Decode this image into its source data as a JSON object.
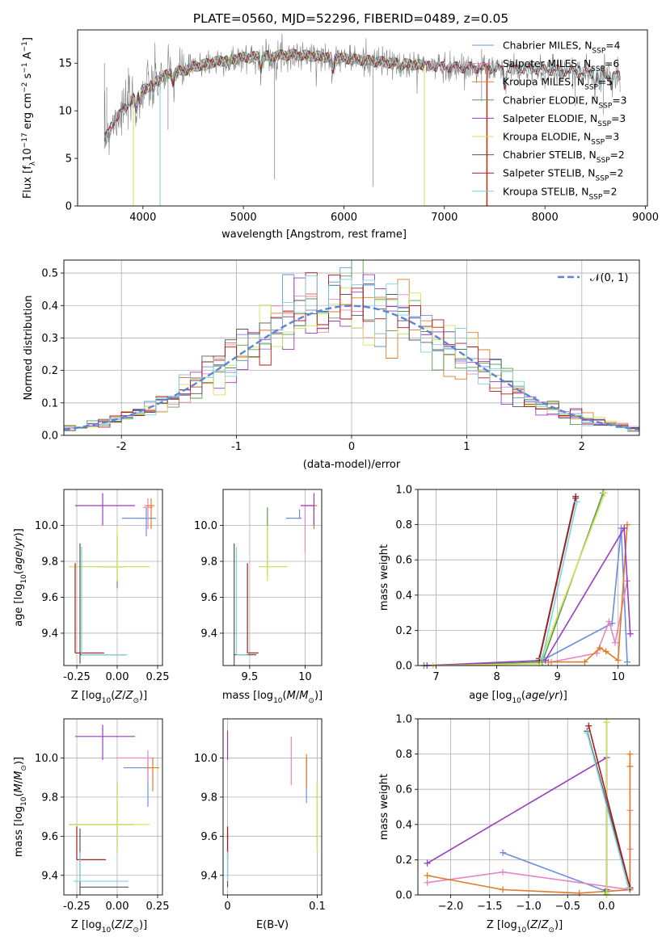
{
  "figure": {
    "title": "PLATE=0560, MJD=52296, FIBERID=0489, z=0.05"
  },
  "colors": {
    "Chabrier MILES": "#6a8fdc",
    "Salpeter MILES": "#e785c2",
    "Kroupa MILES": "#e07b28",
    "Chabrier ELODIE": "#5b9a4c",
    "Salpeter ELODIE": "#9a3cbf",
    "Kroupa ELODIE": "#cfe35a",
    "Chabrier STELIB": "#555555",
    "Salpeter STELIB": "#aa1b1b",
    "Kroupa STELIB": "#7fd2de",
    "data": "#7f7f7f",
    "normal": "#5b86d6"
  },
  "chart_data": [
    {
      "id": "spectrum",
      "type": "line",
      "xlabel": "wavelength [Angstrom, rest frame]",
      "ylabel": "Flux [f_λ10^-17 erg cm^-2 s^-1 A^-1]",
      "xlim": [
        3350,
        9020
      ],
      "ylim": [
        0,
        18.5
      ],
      "xticks": [
        4000,
        5000,
        6000,
        7000,
        8000,
        9000
      ],
      "yticks": [
        0,
        5,
        10,
        15
      ],
      "grid": false,
      "legend_position": "right",
      "legend": [
        "Chabrier MILES, N_SSP=4",
        "Salpeter MILES, N_SSP=6",
        "Kroupa MILES, N_SSP=5",
        "Chabrier ELODIE, N_SSP=3",
        "Salpeter ELODIE, N_SSP=3",
        "Kroupa ELODIE, N_SSP=3",
        "Chabrier STELIB, N_SSP=2",
        "Salpeter STELIB, N_SSP=2",
        "Kroupa STELIB, N_SSP=2"
      ],
      "continuum": {
        "x": [
          3620,
          3700,
          3800,
          3900,
          4000,
          4100,
          4200,
          4300,
          4400,
          4500,
          4700,
          5000,
          5500,
          6000,
          6500,
          7000,
          7400,
          7600,
          7800,
          8000,
          8200,
          8400,
          8600,
          8750
        ],
        "y": [
          7.0,
          8.8,
          10.0,
          11.3,
          12.2,
          12.8,
          13.6,
          14.0,
          14.2,
          14.6,
          15.1,
          15.6,
          15.9,
          15.5,
          15.0,
          14.6,
          14.5,
          14.4,
          14.4,
          14.3,
          14.2,
          14.0,
          13.9,
          13.7
        ]
      },
      "features": [
        {
          "x": 3933,
          "y": 10.0
        },
        {
          "x": 3968,
          "y": 10.6
        },
        {
          "x": 4102,
          "y": 12.0
        },
        {
          "x": 4300,
          "y": 12.9
        },
        {
          "x": 4861,
          "y": 14.6
        },
        {
          "x": 5175,
          "y": 14.3
        },
        {
          "x": 5270,
          "y": 15.1
        },
        {
          "x": 5890,
          "y": 14.1
        },
        {
          "x": 6563,
          "y": 14.0
        },
        {
          "x": 7600,
          "y": 12.3
        },
        {
          "x": 8498,
          "y": 12.6
        },
        {
          "x": 8542,
          "y": 12.2
        },
        {
          "x": 8662,
          "y": 12.4
        }
      ],
      "data_spikes": [
        {
          "x": 3617,
          "y1": 6.0,
          "y2": 15.0
        },
        {
          "x": 3640,
          "y1": 7.2,
          "y2": 12.5
        },
        {
          "x": 3905,
          "y1": 0,
          "y2": 8.5
        },
        {
          "x": 4170,
          "y1": 0,
          "y2": 10.8
        },
        {
          "x": 5310,
          "y1": 2.8,
          "y2": 15.5
        },
        {
          "x": 6290,
          "y1": 2.0,
          "y2": 15.8
        },
        {
          "x": 6800,
          "y1": 0,
          "y2": 15.3
        },
        {
          "x": 7420,
          "y1": 0,
          "y2": 15.0
        },
        {
          "x": 4250,
          "y1": 8.0,
          "y2": 13.6
        },
        {
          "x": 7370,
          "y1": 11.0,
          "y2": 16.5
        },
        {
          "x": 8300,
          "y1": 10.5,
          "y2": 14.6
        },
        {
          "x": 8580,
          "y1": 9.6,
          "y2": 14.5
        }
      ]
    },
    {
      "id": "residuals",
      "type": "histogram",
      "xlabel": "(data-model)/error",
      "ylabel": "Normed distribution",
      "xlim": [
        -2.5,
        2.5
      ],
      "ylim": [
        0,
        0.54
      ],
      "xticks": [
        -2,
        -1,
        0,
        1,
        2
      ],
      "yticks": [
        0.0,
        0.1,
        0.2,
        0.3,
        0.4,
        0.5
      ],
      "grid": true,
      "bin_edges_range": [
        -2.5,
        2.5
      ],
      "bin_count": 50,
      "normal_label": "𝒩(0, 1)",
      "normal_mean": 0,
      "normal_std": 1
    },
    {
      "id": "age_vs_Z",
      "type": "errorbar",
      "xlabel": "Z [log10(Z/Z⊙)]",
      "ylabel": "age [log10(age/yr)]",
      "xlim": [
        -0.33,
        0.28
      ],
      "ylim": [
        9.22,
        10.2
      ],
      "xticks": [
        -0.25,
        0.0,
        0.25
      ],
      "yticks": [
        9.4,
        9.6,
        9.8,
        10.0
      ],
      "grid": true,
      "points": [
        {
          "series": "Chabrier MILES",
          "x": 0.18,
          "y": 10.04,
          "xerr": [
            0.15,
            0.06
          ],
          "yerr": [
            0.1,
            0.06
          ]
        },
        {
          "series": "Salpeter MILES",
          "x": 0.19,
          "y": 10.1,
          "xerr": [
            0.03,
            0.03
          ],
          "yerr": [
            0.12,
            0.05
          ]
        },
        {
          "series": "Kroupa MILES",
          "x": 0.21,
          "y": 10.11,
          "xerr": [
            0.04,
            0.02
          ],
          "yerr": [
            0.13,
            0.04
          ]
        },
        {
          "series": "Chabrier ELODIE",
          "x": 0.0,
          "y": 9.77,
          "xerr": [
            0.12,
            0.05
          ],
          "yerr": [
            0.12,
            0.18
          ]
        },
        {
          "series": "Salpeter ELODIE",
          "x": -0.09,
          "y": 10.11,
          "xerr": [
            0.17,
            0.2
          ],
          "yerr": [
            0.11,
            0.07
          ]
        },
        {
          "series": "Kroupa ELODIE",
          "x": 0.0,
          "y": 9.77,
          "xerr": [
            0.3,
            0.2
          ],
          "yerr": [
            0.08,
            0.22
          ]
        },
        {
          "series": "Chabrier STELIB",
          "x": -0.23,
          "y": 9.28,
          "xerr": [
            0.0,
            0.28
          ],
          "yerr": [
            0.05,
            0.62
          ]
        },
        {
          "series": "Salpeter STELIB",
          "x": -0.26,
          "y": 9.29,
          "xerr": [
            0.0,
            0.18
          ],
          "yerr": [
            0.0,
            0.5
          ]
        },
        {
          "series": "Kroupa STELIB",
          "x": -0.22,
          "y": 9.28,
          "xerr": [
            0.0,
            0.28
          ],
          "yerr": [
            0.0,
            0.6
          ]
        }
      ]
    },
    {
      "id": "age_vs_mass",
      "type": "errorbar",
      "xlabel": "mass [log10(M/M⊙)]",
      "ylabel": "",
      "xlim": [
        9.26,
        10.15
      ],
      "ylim": [
        9.22,
        10.2
      ],
      "xticks": [
        9.5,
        10.0
      ],
      "yticks": [
        9.4,
        9.6,
        9.8,
        10.0
      ],
      "grid": true,
      "points": [
        {
          "series": "Chabrier MILES",
          "x": 9.95,
          "y": 10.04,
          "xerr": [
            0.12,
            0.02
          ],
          "yerr": [
            0.0,
            0.05
          ]
        },
        {
          "series": "Salpeter MILES",
          "x": 10.0,
          "y": 10.11,
          "xerr": [
            0.02,
            0.1
          ],
          "yerr": [
            0.26,
            0.0
          ]
        },
        {
          "series": "Kroupa MILES",
          "x": 10.08,
          "y": 10.11,
          "xerr": [
            0.0,
            0.03
          ],
          "yerr": [
            0.13,
            0.0
          ]
        },
        {
          "series": "Chabrier ELODIE",
          "x": 9.66,
          "y": 9.77,
          "xerr": [
            0.0,
            0.0
          ],
          "yerr": [
            0.05,
            0.33
          ]
        },
        {
          "series": "Salpeter ELODIE",
          "x": 10.08,
          "y": 10.11,
          "xerr": [
            0.12,
            0.0
          ],
          "yerr": [
            0.11,
            0.07
          ]
        },
        {
          "series": "Kroupa ELODIE",
          "x": 9.66,
          "y": 9.77,
          "xerr": [
            0.08,
            0.18
          ],
          "yerr": [
            0.08,
            0.23
          ]
        },
        {
          "series": "Chabrier STELIB",
          "x": 9.36,
          "y": 9.28,
          "xerr": [
            0.0,
            0.2
          ],
          "yerr": [
            0.06,
            0.62
          ]
        },
        {
          "series": "Salpeter STELIB",
          "x": 9.48,
          "y": 9.29,
          "xerr": [
            0.0,
            0.1
          ],
          "yerr": [
            0.0,
            0.5
          ]
        },
        {
          "series": "Kroupa STELIB",
          "x": 9.38,
          "y": 9.28,
          "xerr": [
            0.0,
            0.1
          ],
          "yerr": [
            0.0,
            0.6
          ]
        }
      ]
    },
    {
      "id": "massweight_vs_age",
      "type": "line",
      "xlabel": "age [log10(age/yr)]",
      "ylabel": "mass weight",
      "xlim": [
        6.7,
        10.35
      ],
      "ylim": [
        0,
        1.0
      ],
      "xticks": [
        7,
        8,
        9,
        10
      ],
      "yticks": [
        0.0,
        0.2,
        0.4,
        0.6,
        0.8,
        1.0
      ],
      "grid": true,
      "series": [
        {
          "name": "Chabrier MILES",
          "x": [
            8.75,
            9.9,
            10.05,
            10.15
          ],
          "y": [
            0.03,
            0.24,
            0.78,
            0.02
          ]
        },
        {
          "name": "Salpeter MILES",
          "x": [
            8.9,
            9.65,
            9.85,
            9.95,
            10.15
          ],
          "y": [
            0.02,
            0.07,
            0.25,
            0.13,
            0.48
          ]
        },
        {
          "name": "Kroupa MILES",
          "x": [
            8.85,
            9.45,
            9.7,
            9.8,
            10.0,
            10.15
          ],
          "y": [
            0.02,
            0.02,
            0.1,
            0.08,
            0.03,
            0.8
          ]
        },
        {
          "name": "Chabrier ELODIE",
          "x": [
            6.8,
            8.75,
            9.75
          ],
          "y": [
            0.0,
            0.02,
            0.98
          ]
        },
        {
          "name": "Salpeter ELODIE",
          "x": [
            6.85,
            8.8,
            10.1,
            10.2
          ],
          "y": [
            0.0,
            0.03,
            0.78,
            0.18
          ]
        },
        {
          "name": "Kroupa ELODIE",
          "x": [
            6.95,
            8.7,
            9.78
          ],
          "y": [
            0.0,
            0.01,
            0.98
          ]
        },
        {
          "name": "Chabrier STELIB",
          "x": [
            8.7,
            9.3
          ],
          "y": [
            0.03,
            0.95
          ]
        },
        {
          "name": "Salpeter STELIB",
          "x": [
            8.7,
            9.3
          ],
          "y": [
            0.04,
            0.96
          ]
        },
        {
          "name": "Kroupa STELIB",
          "x": [
            8.75,
            9.32
          ],
          "y": [
            0.04,
            0.93
          ]
        }
      ]
    },
    {
      "id": "mass_vs_Z",
      "type": "errorbar",
      "xlabel": "Z [log10(Z/Z⊙)]",
      "ylabel": "mass [log10(M/M⊙)]",
      "xlim": [
        -0.33,
        0.28
      ],
      "ylim": [
        9.3,
        10.2
      ],
      "xticks": [
        -0.25,
        0.0,
        0.25
      ],
      "yticks": [
        9.4,
        9.6,
        9.8,
        10.0
      ],
      "grid": true,
      "points": [
        {
          "series": "Chabrier MILES",
          "x": 0.19,
          "y": 9.95,
          "xerr": [
            0.15,
            0.02
          ],
          "yerr": [
            0.2,
            0.05
          ]
        },
        {
          "series": "Salpeter MILES",
          "x": 0.19,
          "y": 10.0,
          "xerr": [
            0.2,
            0.04
          ],
          "yerr": [
            0.12,
            0.04
          ]
        },
        {
          "series": "Kroupa MILES",
          "x": 0.22,
          "y": 9.95,
          "xerr": [
            0.05,
            0.04
          ],
          "yerr": [
            0.12,
            0.05
          ]
        },
        {
          "series": "Chabrier ELODIE",
          "x": 0.0,
          "y": 9.66,
          "xerr": [
            0.3,
            0.1
          ],
          "yerr": [
            0.14,
            0.22
          ]
        },
        {
          "series": "Salpeter ELODIE",
          "x": -0.09,
          "y": 10.11,
          "xerr": [
            0.17,
            0.2
          ],
          "yerr": [
            0.12,
            0.06
          ]
        },
        {
          "series": "Kroupa ELODIE",
          "x": 0.0,
          "y": 9.66,
          "xerr": [
            0.3,
            0.2
          ],
          "yerr": [
            0.14,
            0.22
          ]
        },
        {
          "series": "Chabrier STELIB",
          "x": -0.23,
          "y": 9.34,
          "xerr": [
            0.0,
            0.3
          ],
          "yerr": [
            0.04,
            0.3
          ]
        },
        {
          "series": "Salpeter STELIB",
          "x": -0.25,
          "y": 9.48,
          "xerr": [
            0.0,
            0.18
          ],
          "yerr": [
            0.0,
            0.17
          ]
        },
        {
          "series": "Kroupa STELIB",
          "x": -0.23,
          "y": 9.37,
          "xerr": [
            0.04,
            0.3
          ],
          "yerr": [
            0.0,
            0.15
          ]
        }
      ]
    },
    {
      "id": "mass_vs_ebv",
      "type": "errorbar",
      "xlabel": "E(B-V)",
      "ylabel": "",
      "xlim": [
        -0.005,
        0.105
      ],
      "ylim": [
        9.3,
        10.2
      ],
      "xticks": [
        0,
        0.1
      ],
      "yticks": [
        9.4,
        9.6,
        9.8,
        10.0
      ],
      "grid": true,
      "points": [
        {
          "series": "Chabrier MILES",
          "x": 0.088,
          "y": 9.95,
          "xerr": [
            0,
            0
          ],
          "yerr": [
            0.18,
            0.05
          ]
        },
        {
          "series": "Salpeter MILES",
          "x": 0.071,
          "y": 10.0,
          "xerr": [
            0,
            0
          ],
          "yerr": [
            0.14,
            0.11
          ]
        },
        {
          "series": "Kroupa MILES",
          "x": 0.088,
          "y": 9.95,
          "xerr": [
            0,
            0
          ],
          "yerr": [
            0.1,
            0.07
          ]
        },
        {
          "series": "Chabrier ELODIE",
          "x": 0.1,
          "y": 9.66,
          "xerr": [
            0,
            0
          ],
          "yerr": [
            0.14,
            0.22
          ]
        },
        {
          "series": "Salpeter ELODIE",
          "x": 0.0,
          "y": 10.11,
          "xerr": [
            0,
            0
          ],
          "yerr": [
            0.12,
            0.03
          ]
        },
        {
          "series": "Kroupa ELODIE",
          "x": 0.1,
          "y": 9.66,
          "xerr": [
            0,
            0
          ],
          "yerr": [
            0.14,
            0.22
          ]
        },
        {
          "series": "Chabrier STELIB",
          "x": 0.0,
          "y": 9.34,
          "xerr": [
            0,
            0
          ],
          "yerr": [
            0.0,
            0.3
          ]
        },
        {
          "series": "Salpeter STELIB",
          "x": 0.0,
          "y": 9.48,
          "xerr": [
            0,
            0
          ],
          "yerr": [
            0.0,
            0.17
          ]
        },
        {
          "series": "Kroupa STELIB",
          "x": 0.0,
          "y": 9.37,
          "xerr": [
            0,
            0
          ],
          "yerr": [
            0.0,
            0.15
          ]
        }
      ]
    },
    {
      "id": "massweight_vs_Z",
      "type": "line",
      "xlabel": "Z [log10(Z/Z⊙)]",
      "ylabel": "mass weight",
      "xlim": [
        -2.42,
        0.42
      ],
      "ylim": [
        0,
        1.0
      ],
      "xticks": [
        -2.0,
        -1.5,
        -1.0,
        -0.5,
        0.0
      ],
      "yticks": [
        0.0,
        0.2,
        0.4,
        0.6,
        0.8,
        1.0
      ],
      "grid": true,
      "series": [
        {
          "name": "Chabrier MILES",
          "x": [
            -1.33,
            0.0,
            0.3
          ],
          "y": [
            0.24,
            0.02,
            0.03
          ]
        },
        {
          "name": "Salpeter MILES",
          "x": [
            -2.3,
            -1.33,
            0.3,
            0.3,
            0.3
          ],
          "y": [
            0.07,
            0.13,
            0.03,
            0.26,
            0.48
          ]
        },
        {
          "name": "Kroupa MILES",
          "x": [
            -2.3,
            -1.33,
            -0.35,
            0.3,
            0.3,
            0.3
          ],
          "y": [
            0.11,
            0.03,
            0.01,
            0.03,
            0.73,
            0.8
          ]
        },
        {
          "name": "Chabrier ELODIE",
          "x": [
            -0.02,
            0.0,
            0.0
          ],
          "y": [
            0.02,
            0.0,
            0.98
          ]
        },
        {
          "name": "Salpeter ELODIE",
          "x": [
            -2.3,
            0.0,
            0.0
          ],
          "y": [
            0.18,
            0.78,
            0.03
          ]
        },
        {
          "name": "Kroupa ELODIE",
          "x": [
            0.0,
            0.0,
            0.0
          ],
          "y": [
            0.0,
            0.01,
            0.98
          ]
        },
        {
          "name": "Chabrier STELIB",
          "x": [
            -0.25,
            0.3
          ],
          "y": [
            0.93,
            0.04
          ]
        },
        {
          "name": "Salpeter STELIB",
          "x": [
            -0.23,
            0.3
          ],
          "y": [
            0.96,
            0.04
          ]
        },
        {
          "name": "Kroupa STELIB",
          "x": [
            -0.25,
            0.28
          ],
          "y": [
            0.92,
            0.04
          ]
        }
      ]
    }
  ]
}
